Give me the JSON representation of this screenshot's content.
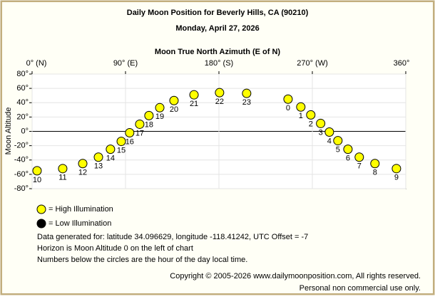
{
  "chart_data": {
    "type": "scatter",
    "title": "Daily Moon Position for Beverly Hills, CA (90210)",
    "subtitle": "Monday, April 27, 2026",
    "x_label": "Moon True North Azimuth (E of N)",
    "y_label": "Moon Altitude",
    "xlim": [
      0,
      360
    ],
    "xticks": [
      {
        "value": 0,
        "label": "0° (N)"
      },
      {
        "value": 90,
        "label": "90° (E)"
      },
      {
        "value": 180,
        "label": "180° (S)"
      },
      {
        "value": 270,
        "label": "270° (W)"
      },
      {
        "value": 360,
        "label": "360°"
      }
    ],
    "ylim": [
      -80,
      80
    ],
    "yticks": [
      {
        "value": -80,
        "label": "-80°"
      },
      {
        "value": -60,
        "label": "-60°"
      },
      {
        "value": -40,
        "label": "-40°"
      },
      {
        "value": -20,
        "label": "-20°"
      },
      {
        "value": 0,
        "label": "0°"
      },
      {
        "value": 20,
        "label": "20°"
      },
      {
        "value": 40,
        "label": "40°"
      },
      {
        "value": 60,
        "label": "60°"
      },
      {
        "value": 80,
        "label": "80°"
      }
    ],
    "grid": true,
    "series": [
      {
        "name": "= High Illumination",
        "color": "#ffff00",
        "x": [
          4.8,
          29.5,
          48.8,
          63.9,
          75.5,
          85.9,
          94,
          103.7,
          112.6,
          123,
          136.7,
          156,
          180.6,
          206.7,
          246.6,
          258.9,
          268.5,
          278,
          286.4,
          294.6,
          304.3,
          315.2,
          330.3,
          351
        ],
        "values": [
          -55,
          -52,
          -45,
          -36,
          -25,
          -14,
          -2,
          10,
          22,
          33,
          43,
          51,
          54,
          53,
          45,
          34,
          23,
          11,
          -1,
          -13,
          -25,
          -36,
          -45,
          -52
        ],
        "point_labels": [
          "10",
          "11",
          "12",
          "13",
          "14",
          "15",
          "16",
          "17",
          "18",
          "19",
          "20",
          "21",
          "22",
          "23",
          "0",
          "1",
          "2",
          "3",
          "4",
          "5",
          "6",
          "7",
          "8",
          "9"
        ]
      },
      {
        "name": "= Low Illumination",
        "color": "#000000",
        "x": [],
        "values": [],
        "point_labels": []
      }
    ],
    "notes": [
      "Data generated for: latitude 34.096629, longitude -118.41242, UTC Offset = -7",
      "Horizon is Moon Altitude 0 on the left of chart",
      "Numbers below the circles are the hour of the day local time."
    ],
    "footer": [
      "Copyright © 2005-2026 www.dailymoonposition.com, All rights reserved.",
      "Personal non commercial use only."
    ]
  }
}
